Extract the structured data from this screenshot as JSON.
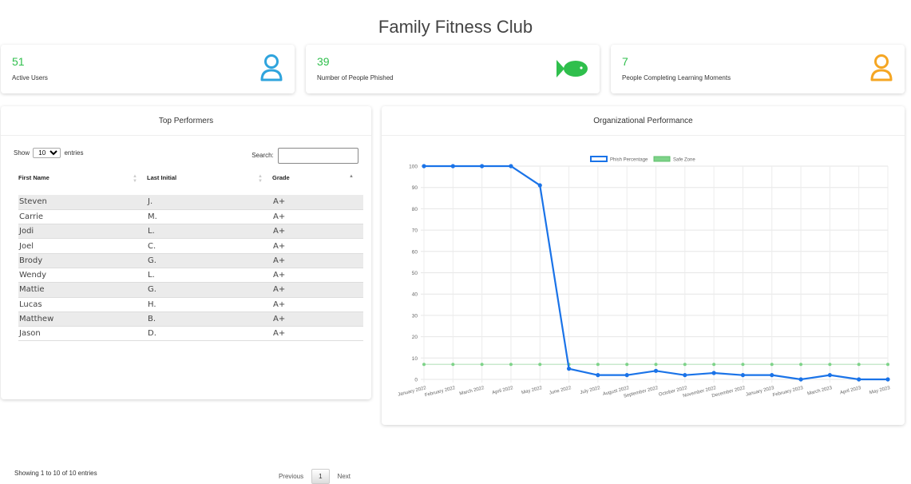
{
  "page": {
    "title": "Family Fitness Club"
  },
  "stats": [
    {
      "value": "51",
      "label": "Active Users",
      "icon": "user-icon",
      "icon_color": "#2fa4dd"
    },
    {
      "value": "39",
      "label": "Number of People Phished",
      "icon": "fish-icon",
      "icon_color": "#2fbf4c"
    },
    {
      "value": "7",
      "label": "People Completing Learning Moments",
      "icon": "user-icon",
      "icon_color": "#f5a623"
    }
  ],
  "top_performers": {
    "title": "Top Performers",
    "show_label": "Show",
    "entries_label": "entries",
    "entries_selected": "10",
    "search_label": "Search:",
    "search_value": "",
    "columns": [
      "First Name",
      "Last Initial",
      "Grade"
    ],
    "rows": [
      [
        "Steven",
        "J.",
        "A+"
      ],
      [
        "Carrie",
        "M.",
        "A+"
      ],
      [
        "Jodi",
        "L.",
        "A+"
      ],
      [
        "Joel",
        "C.",
        "A+"
      ],
      [
        "Brody",
        "G.",
        "A+"
      ],
      [
        "Wendy",
        "L.",
        "A+"
      ],
      [
        "Mattie",
        "G.",
        "A+"
      ],
      [
        "Lucas",
        "H.",
        "A+"
      ],
      [
        "Matthew",
        "B.",
        "A+"
      ],
      [
        "Jason",
        "D.",
        "A+"
      ]
    ],
    "info": "Showing 1 to 10 of 10 entries",
    "pager": {
      "previous": "Previous",
      "current": "1",
      "next": "Next"
    }
  },
  "org_performance": {
    "title": "Organizational Performance"
  },
  "chart_data": {
    "type": "line",
    "title": "",
    "xlabel": "",
    "ylabel": "",
    "ylim": [
      0,
      100
    ],
    "yticks": [
      0,
      10,
      20,
      30,
      40,
      50,
      60,
      70,
      80,
      90,
      100
    ],
    "grid": true,
    "legend_placement": "top",
    "categories": [
      "January 2022",
      "February 2022",
      "March 2022",
      "April 2022",
      "May 2022",
      "June 2022",
      "July 2022",
      "August 2022",
      "September 2022",
      "October 2022",
      "November 2022",
      "December 2022",
      "January 2023",
      "February 2023",
      "March 2023",
      "April 2023",
      "May 2023"
    ],
    "series": [
      {
        "name": "Phish Percentage",
        "color": "#1a73e8",
        "values": [
          100,
          100,
          100,
          100,
          91,
          5,
          2,
          2,
          4,
          2,
          3,
          2,
          2,
          0,
          2,
          0,
          0
        ]
      },
      {
        "name": "Safe Zone",
        "color": "#7ed389",
        "values": [
          7,
          7,
          7,
          7,
          7,
          7,
          7,
          7,
          7,
          7,
          7,
          7,
          7,
          7,
          7,
          7,
          7
        ]
      }
    ]
  }
}
